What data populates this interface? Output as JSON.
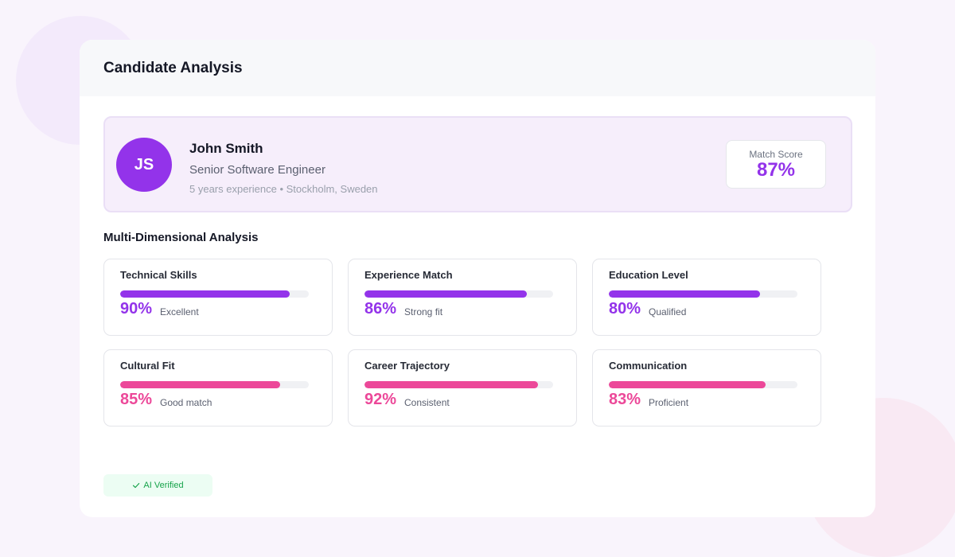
{
  "header": {
    "title": "Candidate Analysis"
  },
  "candidate": {
    "initials": "JS",
    "name": "John Smith",
    "role": "Senior Software Engineer",
    "meta": "5 years experience • Stockholm, Sweden"
  },
  "match": {
    "label": "Match Score",
    "value": "87%"
  },
  "analysis": {
    "title": "Multi-Dimensional Analysis",
    "metrics": [
      {
        "name": "Technical Skills",
        "value": "90%",
        "level": 0.9,
        "desc": "Excellent",
        "color": "#9333ea"
      },
      {
        "name": "Experience Match",
        "value": "86%",
        "level": 0.86,
        "desc": "Strong fit",
        "color": "#9333ea"
      },
      {
        "name": "Education Level",
        "value": "80%",
        "level": 0.8,
        "desc": "Qualified",
        "color": "#9333ea"
      },
      {
        "name": "Cultural Fit",
        "value": "85%",
        "level": 0.85,
        "desc": "Good match",
        "color": "#ec4899"
      },
      {
        "name": "Career Trajectory",
        "value": "92%",
        "level": 0.92,
        "desc": "Consistent",
        "color": "#ec4899"
      },
      {
        "name": "Communication",
        "value": "83%",
        "level": 0.83,
        "desc": "Proficient",
        "color": "#ec4899"
      }
    ]
  },
  "badge": {
    "icon": "check-icon",
    "label": "AI Verified",
    "color": "#16a34a"
  }
}
